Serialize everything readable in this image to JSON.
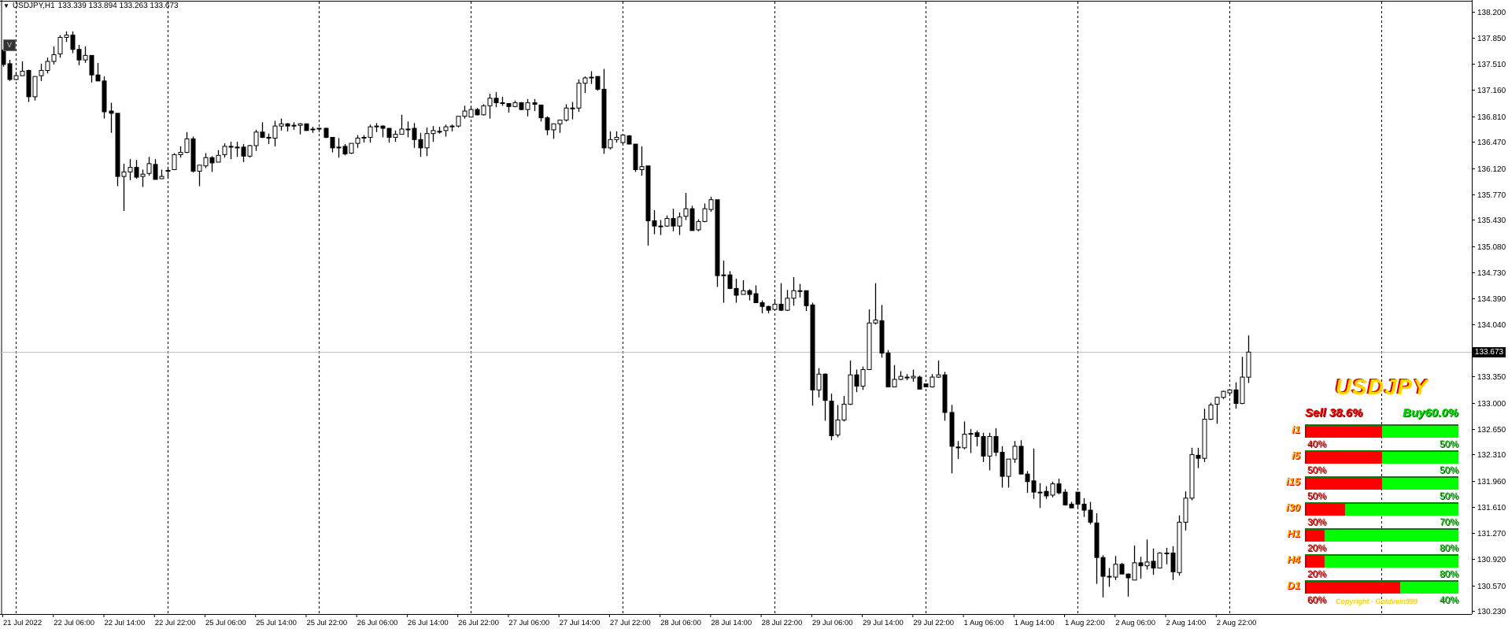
{
  "header": {
    "symbol_timeframe": "USDJPY,H1",
    "ohlc_text": "133.339 133.894 133.263 133.673",
    "menu_icon": "triangle-down-icon"
  },
  "v_button": "V",
  "current_price": "133.673",
  "colors": {
    "bull_body": "#FFFFFF",
    "bear_body": "#000000",
    "outline": "#000000",
    "grid": "#000000",
    "price_line": "#C0C0C0",
    "sell": "#FF0000",
    "buy": "#00FF00",
    "title": "#FFD700"
  },
  "panel": {
    "title": "USDJPY",
    "sell_total": "Sell 38.6%",
    "buy_total": "Buy60.0%",
    "copyright": "Copyright · Goldvein999",
    "rows": [
      {
        "label": "i1",
        "sell": "40%",
        "buy": "50%",
        "sell_fill": 0.5
      },
      {
        "label": "i5",
        "sell": "50%",
        "buy": "50%",
        "sell_fill": 0.5
      },
      {
        "label": "i15",
        "sell": "50%",
        "buy": "50%",
        "sell_fill": 0.5
      },
      {
        "label": "i30",
        "sell": "30%",
        "buy": "70%",
        "sell_fill": 0.26
      },
      {
        "label": "H1",
        "sell": "20%",
        "buy": "80%",
        "sell_fill": 0.13
      },
      {
        "label": "H4",
        "sell": "20%",
        "buy": "80%",
        "sell_fill": 0.13
      },
      {
        "label": "D1",
        "sell": "60%",
        "buy": "40%",
        "sell_fill": 0.62
      }
    ]
  },
  "chart_data": {
    "type": "candlestick",
    "symbol": "USDJPY",
    "timeframe": "H1",
    "ylim": [
      130.23,
      138.2
    ],
    "grid": "vertical dashed",
    "y_ticks": [
      "138.200",
      "137.850",
      "137.510",
      "137.160",
      "136.810",
      "136.470",
      "136.120",
      "135.770",
      "135.430",
      "135.080",
      "134.730",
      "134.390",
      "134.040",
      "133.350",
      "133.000",
      "132.650",
      "132.310",
      "131.960",
      "131.610",
      "131.270",
      "130.920",
      "130.570",
      "130.230"
    ],
    "x_ticks": [
      "21 Jul 2022",
      "22 Jul 06:00",
      "22 Jul 14:00",
      "22 Jul 22:00",
      "25 Jul 06:00",
      "25 Jul 14:00",
      "25 Jul 22:00",
      "26 Jul 06:00",
      "26 Jul 14:00",
      "26 Jul 22:00",
      "27 Jul 06:00",
      "27 Jul 14:00",
      "27 Jul 22:00",
      "28 Jul 06:00",
      "28 Jul 14:00",
      "28 Jul 22:00",
      "29 Jul 06:00",
      "29 Jul 14:00",
      "29 Jul 22:00",
      "1 Aug 06:00",
      "1 Aug 14:00",
      "1 Aug 22:00",
      "2 Aug 06:00",
      "2 Aug 14:00",
      "2 Aug 22:00"
    ],
    "bars_per_x_tick": 8,
    "ohlc": [
      [
        137.69,
        137.71,
        137.47,
        137.5
      ],
      [
        137.51,
        137.56,
        137.28,
        137.3
      ],
      [
        137.3,
        137.4,
        137.29,
        137.35
      ],
      [
        137.35,
        137.54,
        137.35,
        137.41
      ],
      [
        137.42,
        137.43,
        137.0,
        137.07
      ],
      [
        137.07,
        137.34,
        137.02,
        137.34
      ],
      [
        137.35,
        137.51,
        137.28,
        137.42
      ],
      [
        137.42,
        137.59,
        137.38,
        137.54
      ],
      [
        137.54,
        137.74,
        137.5,
        137.63
      ],
      [
        137.64,
        137.89,
        137.59,
        137.86
      ],
      [
        137.86,
        137.94,
        137.8,
        137.89
      ],
      [
        137.89,
        137.94,
        137.65,
        137.7
      ],
      [
        137.7,
        137.76,
        137.49,
        137.56
      ],
      [
        137.56,
        137.74,
        137.52,
        137.62
      ],
      [
        137.62,
        137.62,
        137.26,
        137.36
      ],
      [
        137.36,
        137.52,
        137.28,
        137.28
      ],
      [
        137.28,
        137.34,
        136.78,
        136.87
      ],
      [
        136.88,
        136.99,
        136.59,
        136.85
      ],
      [
        136.85,
        136.85,
        135.88,
        136.01
      ],
      [
        136.01,
        136.18,
        135.55,
        136.07
      ],
      [
        136.07,
        136.24,
        135.96,
        136.13
      ],
      [
        136.13,
        136.23,
        135.98,
        136.0
      ],
      [
        136.01,
        136.1,
        135.87,
        136.04
      ],
      [
        136.05,
        136.27,
        136.02,
        136.18
      ],
      [
        136.17,
        136.24,
        135.97,
        135.97
      ],
      [
        135.98,
        136.1,
        135.98,
        136.01
      ],
      [
        136.09,
        136.14,
        135.98,
        136.09
      ],
      [
        136.1,
        136.32,
        136.1,
        136.3
      ],
      [
        136.3,
        136.41,
        136.26,
        136.33
      ],
      [
        136.33,
        136.6,
        136.32,
        136.51
      ],
      [
        136.51,
        136.54,
        136.06,
        136.08
      ],
      [
        136.08,
        136.16,
        135.88,
        136.16
      ],
      [
        136.15,
        136.32,
        136.12,
        136.26
      ],
      [
        136.26,
        136.28,
        136.07,
        136.19
      ],
      [
        136.2,
        136.36,
        136.2,
        136.29
      ],
      [
        136.3,
        136.45,
        136.26,
        136.41
      ],
      [
        136.41,
        136.47,
        136.24,
        136.4
      ],
      [
        136.4,
        136.47,
        136.27,
        136.4
      ],
      [
        136.4,
        136.44,
        136.2,
        136.28
      ],
      [
        136.28,
        136.43,
        136.26,
        136.42
      ],
      [
        136.42,
        136.63,
        136.35,
        136.6
      ],
      [
        136.6,
        136.73,
        136.52,
        136.53
      ],
      [
        136.53,
        136.58,
        136.44,
        136.52
      ],
      [
        136.52,
        136.75,
        136.41,
        136.68
      ],
      [
        136.68,
        136.78,
        136.62,
        136.71
      ],
      [
        136.71,
        136.72,
        136.61,
        136.68
      ],
      [
        136.69,
        136.73,
        136.63,
        136.69
      ],
      [
        136.69,
        136.72,
        136.57,
        136.71
      ],
      [
        136.71,
        136.71,
        136.62,
        136.62
      ],
      [
        136.64,
        136.67,
        136.59,
        136.64
      ],
      [
        136.65,
        136.66,
        136.6,
        136.65
      ],
      [
        136.65,
        136.66,
        136.52,
        136.53
      ],
      [
        136.53,
        136.53,
        136.33,
        136.39
      ],
      [
        136.4,
        136.52,
        136.26,
        136.4
      ],
      [
        136.41,
        136.44,
        136.29,
        136.31
      ],
      [
        136.32,
        136.45,
        136.31,
        136.45
      ],
      [
        136.45,
        136.56,
        136.39,
        136.52
      ],
      [
        136.52,
        136.56,
        136.46,
        136.53
      ],
      [
        136.53,
        136.7,
        136.46,
        136.67
      ],
      [
        136.68,
        136.72,
        136.6,
        136.68
      ],
      [
        136.68,
        136.69,
        136.53,
        136.65
      ],
      [
        136.65,
        136.65,
        136.46,
        136.53
      ],
      [
        136.53,
        136.62,
        136.47,
        136.57
      ],
      [
        136.57,
        136.83,
        136.57,
        136.64
      ],
      [
        136.64,
        136.74,
        136.53,
        136.64
      ],
      [
        136.65,
        136.72,
        136.39,
        136.5
      ],
      [
        136.5,
        136.59,
        136.27,
        136.39
      ],
      [
        136.39,
        136.66,
        136.28,
        136.58
      ],
      [
        136.58,
        136.68,
        136.47,
        136.62
      ],
      [
        136.61,
        136.67,
        136.58,
        136.61
      ],
      [
        136.62,
        136.7,
        136.54,
        136.67
      ],
      [
        136.68,
        136.7,
        136.61,
        136.68
      ],
      [
        136.68,
        136.81,
        136.66,
        136.81
      ],
      [
        136.81,
        136.95,
        136.78,
        136.88
      ],
      [
        136.8,
        136.94,
        136.8,
        136.9
      ],
      [
        136.9,
        136.92,
        136.82,
        136.83
      ],
      [
        136.83,
        136.97,
        136.82,
        136.95
      ],
      [
        136.95,
        137.11,
        136.78,
        137.05
      ],
      [
        137.05,
        137.13,
        136.93,
        136.99
      ],
      [
        136.99,
        137.07,
        136.95,
        136.99
      ],
      [
        136.98,
        136.98,
        136.86,
        136.94
      ],
      [
        136.94,
        137.02,
        136.93,
        136.99
      ],
      [
        136.99,
        137.0,
        136.89,
        136.9
      ],
      [
        136.9,
        137.04,
        136.81,
        136.99
      ],
      [
        136.99,
        137.04,
        136.88,
        136.97
      ],
      [
        136.96,
        136.96,
        136.74,
        136.79
      ],
      [
        136.79,
        136.81,
        136.56,
        136.63
      ],
      [
        136.63,
        136.71,
        136.51,
        136.71
      ],
      [
        136.71,
        136.76,
        136.59,
        136.76
      ],
      [
        136.76,
        136.97,
        136.74,
        136.92
      ],
      [
        136.92,
        137.0,
        136.77,
        136.92
      ],
      [
        136.92,
        137.3,
        136.87,
        137.25
      ],
      [
        137.25,
        137.34,
        137.12,
        137.32
      ],
      [
        137.33,
        137.41,
        137.24,
        137.33
      ],
      [
        137.34,
        137.34,
        137.15,
        137.17
      ],
      [
        137.17,
        137.44,
        136.31,
        136.39
      ],
      [
        136.39,
        136.61,
        136.37,
        136.5
      ],
      [
        136.5,
        136.61,
        136.46,
        136.53
      ],
      [
        136.46,
        136.57,
        136.44,
        136.56
      ],
      [
        136.55,
        136.56,
        136.44,
        136.44
      ],
      [
        136.44,
        136.44,
        136.07,
        136.1
      ],
      [
        136.1,
        136.41,
        136.02,
        136.14
      ],
      [
        136.15,
        136.15,
        135.09,
        135.42
      ],
      [
        135.42,
        135.56,
        135.24,
        135.35
      ],
      [
        135.35,
        135.43,
        135.23,
        135.35
      ],
      [
        135.35,
        135.49,
        135.34,
        135.45
      ],
      [
        135.45,
        135.58,
        135.28,
        135.35
      ],
      [
        135.35,
        135.53,
        135.23,
        135.47
      ],
      [
        135.48,
        135.79,
        135.43,
        135.58
      ],
      [
        135.58,
        135.62,
        135.29,
        135.29
      ],
      [
        135.3,
        135.44,
        135.28,
        135.41
      ],
      [
        135.41,
        135.65,
        135.4,
        135.58
      ],
      [
        135.57,
        135.74,
        135.54,
        135.7
      ],
      [
        135.7,
        135.7,
        134.54,
        134.69
      ],
      [
        134.7,
        134.89,
        134.33,
        134.7
      ],
      [
        134.7,
        134.75,
        134.51,
        134.52
      ],
      [
        134.52,
        134.65,
        134.33,
        134.43
      ],
      [
        134.44,
        134.63,
        134.44,
        134.49
      ],
      [
        134.49,
        134.51,
        134.36,
        134.44
      ],
      [
        134.45,
        134.56,
        134.33,
        134.33
      ],
      [
        134.33,
        134.36,
        134.19,
        134.28
      ],
      [
        134.28,
        134.29,
        134.19,
        134.23
      ],
      [
        134.24,
        134.38,
        134.23,
        134.31
      ],
      [
        134.31,
        134.59,
        134.22,
        134.23
      ],
      [
        134.23,
        134.5,
        134.22,
        134.39
      ],
      [
        134.39,
        134.67,
        134.29,
        134.49
      ],
      [
        134.49,
        134.58,
        134.4,
        134.49
      ],
      [
        134.49,
        134.49,
        134.22,
        134.29
      ],
      [
        134.3,
        134.33,
        132.96,
        133.17
      ],
      [
        133.17,
        133.46,
        133.07,
        133.38
      ],
      [
        133.38,
        133.39,
        132.76,
        133.03
      ],
      [
        133.02,
        133.12,
        132.5,
        132.56
      ],
      [
        132.57,
        132.97,
        132.54,
        132.77
      ],
      [
        132.77,
        133.09,
        132.75,
        132.98
      ],
      [
        132.98,
        133.56,
        132.97,
        133.37
      ],
      [
        133.37,
        133.44,
        133.14,
        133.22
      ],
      [
        133.22,
        133.48,
        133.17,
        133.44
      ],
      [
        133.44,
        134.24,
        133.44,
        134.06
      ],
      [
        134.06,
        134.59,
        134.04,
        134.1
      ],
      [
        134.09,
        134.3,
        133.6,
        133.66
      ],
      [
        133.66,
        133.7,
        133.21,
        133.21
      ],
      [
        133.21,
        133.5,
        133.21,
        133.31
      ],
      [
        133.31,
        133.42,
        133.3,
        133.35
      ],
      [
        133.34,
        133.38,
        133.3,
        133.34
      ],
      [
        133.33,
        133.44,
        133.28,
        133.35
      ],
      [
        133.34,
        133.36,
        133.18,
        133.18
      ],
      [
        133.25,
        133.25,
        133.21,
        133.21
      ],
      [
        133.21,
        133.38,
        133.2,
        133.34
      ],
      [
        133.34,
        133.56,
        133.33,
        133.37
      ],
      [
        133.37,
        133.41,
        132.76,
        132.87
      ],
      [
        132.87,
        132.97,
        132.06,
        132.42
      ],
      [
        132.41,
        132.49,
        132.25,
        132.41
      ],
      [
        132.4,
        132.75,
        132.38,
        132.58
      ],
      [
        132.59,
        132.65,
        132.33,
        132.59
      ],
      [
        132.6,
        132.63,
        132.42,
        132.55
      ],
      [
        132.55,
        132.6,
        132.21,
        132.29
      ],
      [
        132.29,
        132.6,
        132.1,
        132.55
      ],
      [
        132.55,
        132.66,
        132.29,
        132.34
      ],
      [
        132.34,
        132.42,
        131.87,
        132.02
      ],
      [
        132.02,
        132.25,
        131.87,
        132.25
      ],
      [
        132.25,
        132.49,
        132.2,
        132.42
      ],
      [
        132.42,
        132.5,
        132.05,
        132.05
      ],
      [
        132.05,
        132.09,
        131.8,
        131.95
      ],
      [
        131.96,
        132.39,
        131.72,
        131.81
      ],
      [
        131.81,
        131.93,
        131.6,
        131.81
      ],
      [
        131.82,
        131.89,
        131.72,
        131.76
      ],
      [
        131.77,
        131.95,
        131.74,
        131.92
      ],
      [
        131.92,
        131.99,
        131.78,
        131.8
      ],
      [
        131.81,
        131.85,
        131.63,
        131.64
      ],
      [
        131.65,
        131.68,
        131.6,
        131.6
      ],
      [
        131.81,
        131.81,
        131.59,
        131.65
      ],
      [
        131.65,
        131.73,
        131.48,
        131.57
      ],
      [
        131.57,
        131.68,
        131.38,
        131.41
      ],
      [
        131.4,
        131.53,
        130.59,
        130.94
      ],
      [
        130.94,
        130.97,
        130.41,
        130.69
      ],
      [
        130.69,
        130.8,
        130.55,
        130.69
      ],
      [
        130.68,
        130.96,
        130.64,
        130.85
      ],
      [
        130.85,
        130.87,
        130.72,
        130.72
      ],
      [
        130.72,
        130.73,
        130.42,
        130.67
      ],
      [
        130.64,
        131.1,
        130.64,
        130.87
      ],
      [
        130.87,
        130.95,
        130.66,
        130.83
      ],
      [
        130.83,
        131.18,
        130.78,
        130.88
      ],
      [
        130.89,
        131.06,
        130.71,
        130.8
      ],
      [
        130.8,
        131.01,
        130.8,
        131.0
      ],
      [
        131.0,
        131.07,
        130.85,
        131.0
      ],
      [
        131.0,
        131.09,
        130.64,
        130.75
      ],
      [
        130.74,
        131.5,
        130.7,
        131.41
      ],
      [
        131.41,
        131.82,
        131.3,
        131.73
      ],
      [
        131.73,
        132.4,
        131.7,
        132.31
      ],
      [
        132.3,
        132.4,
        132.13,
        132.26
      ],
      [
        132.26,
        132.92,
        132.21,
        132.78
      ],
      [
        132.78,
        133.0,
        132.77,
        132.97
      ],
      [
        132.98,
        133.08,
        132.72,
        133.07
      ],
      [
        133.07,
        133.16,
        133.05,
        133.15
      ],
      [
        133.13,
        133.17,
        133.1,
        133.17
      ],
      [
        133.17,
        133.27,
        132.92,
        132.99
      ],
      [
        132.99,
        133.61,
        132.98,
        133.34
      ],
      [
        133.339,
        133.894,
        133.263,
        133.673
      ]
    ]
  }
}
